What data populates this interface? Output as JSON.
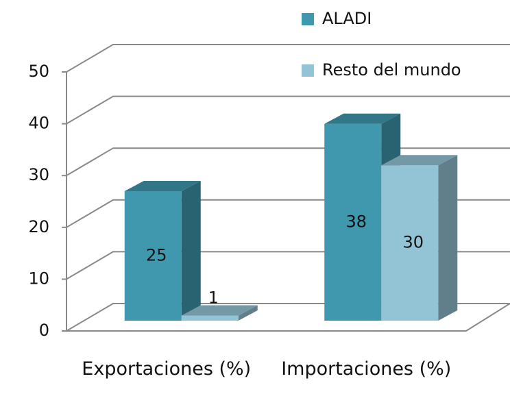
{
  "chart_data": {
    "type": "bar3d",
    "categories": [
      "Exportaciones (%)",
      "Importaciones (%)"
    ],
    "series": [
      {
        "name": "ALADI",
        "color": "#3f98ae",
        "values": [
          25,
          38
        ]
      },
      {
        "name": "Resto del mundo",
        "color": "#93c4d6",
        "values": [
          1,
          30
        ]
      }
    ],
    "ylim": [
      0,
      50
    ],
    "yticks": [
      0,
      10,
      20,
      30,
      40,
      50
    ],
    "grid": true,
    "legend": "top-right"
  }
}
